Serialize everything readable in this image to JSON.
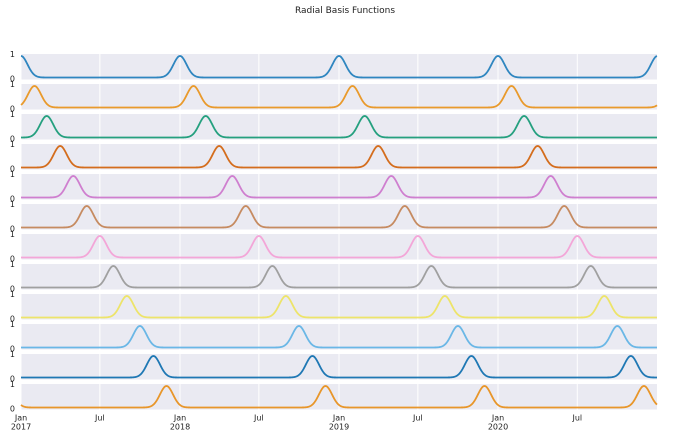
{
  "chart_data": {
    "type": "line",
    "title": "Radial Basis Functions",
    "xlabel": "",
    "ylabel": "",
    "grid": true,
    "legend": "none",
    "x_range": [
      "2017-01-01",
      "2020-12-31"
    ],
    "ylim": [
      0,
      1
    ],
    "y_ticks": [
      "0",
      "1"
    ],
    "x_ticks": [
      {
        "date": "2017-01-01",
        "label": "Jan\n2017"
      },
      {
        "date": "2017-07-01",
        "label": "Jul"
      },
      {
        "date": "2018-01-01",
        "label": "Jan\n2018"
      },
      {
        "date": "2018-07-01",
        "label": "Jul"
      },
      {
        "date": "2019-01-01",
        "label": "Jan\n2019"
      },
      {
        "date": "2019-07-01",
        "label": "Jul"
      },
      {
        "date": "2020-01-01",
        "label": "Jan\n2020"
      },
      {
        "date": "2020-07-01",
        "label": "Jul"
      }
    ],
    "series_function": "exp(-(distance_in_days_to_nearest_yearly_center)^2 / (2 * 15^2))",
    "series": [
      {
        "center_month": 1,
        "color": "#2f86c0"
      },
      {
        "center_month": 2,
        "color": "#e99a2c"
      },
      {
        "center_month": 3,
        "color": "#25a07f"
      },
      {
        "center_month": 4,
        "color": "#d46d1d"
      },
      {
        "center_month": 5,
        "color": "#cf7fcf"
      },
      {
        "center_month": 6,
        "color": "#c68b61"
      },
      {
        "center_month": 7,
        "color": "#f3a6d8"
      },
      {
        "center_month": 8,
        "color": "#a0a0a0"
      },
      {
        "center_month": 9,
        "color": "#ede46a"
      },
      {
        "center_month": 10,
        "color": "#6ab7e6"
      },
      {
        "center_month": 11,
        "color": "#1f78b4"
      },
      {
        "center_month": 12,
        "color": "#e8962a"
      }
    ]
  }
}
